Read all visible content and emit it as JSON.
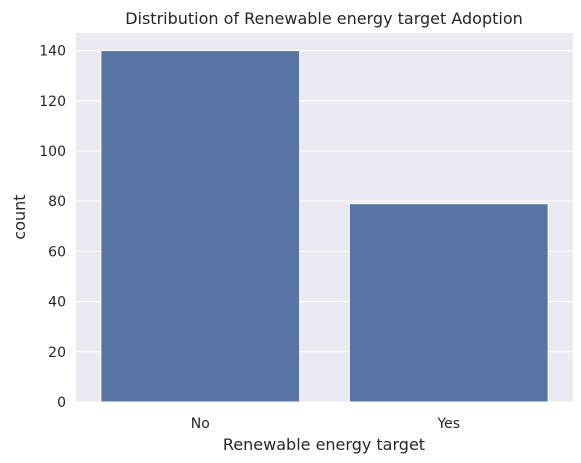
{
  "chart_data": {
    "type": "bar",
    "title": "Distribution of Renewable energy target Adoption",
    "xlabel": "Renewable energy target",
    "ylabel": "count",
    "categories": [
      "No",
      "Yes"
    ],
    "values": [
      140,
      79
    ],
    "ylim": [
      0,
      147
    ],
    "yticks": [
      0,
      20,
      40,
      60,
      80,
      100,
      120,
      140
    ],
    "grid": true,
    "colors": {
      "bar": "#5875a4",
      "plot_background": "#eaeaf2",
      "gridline": "#ffffff",
      "text": "#262626"
    }
  }
}
